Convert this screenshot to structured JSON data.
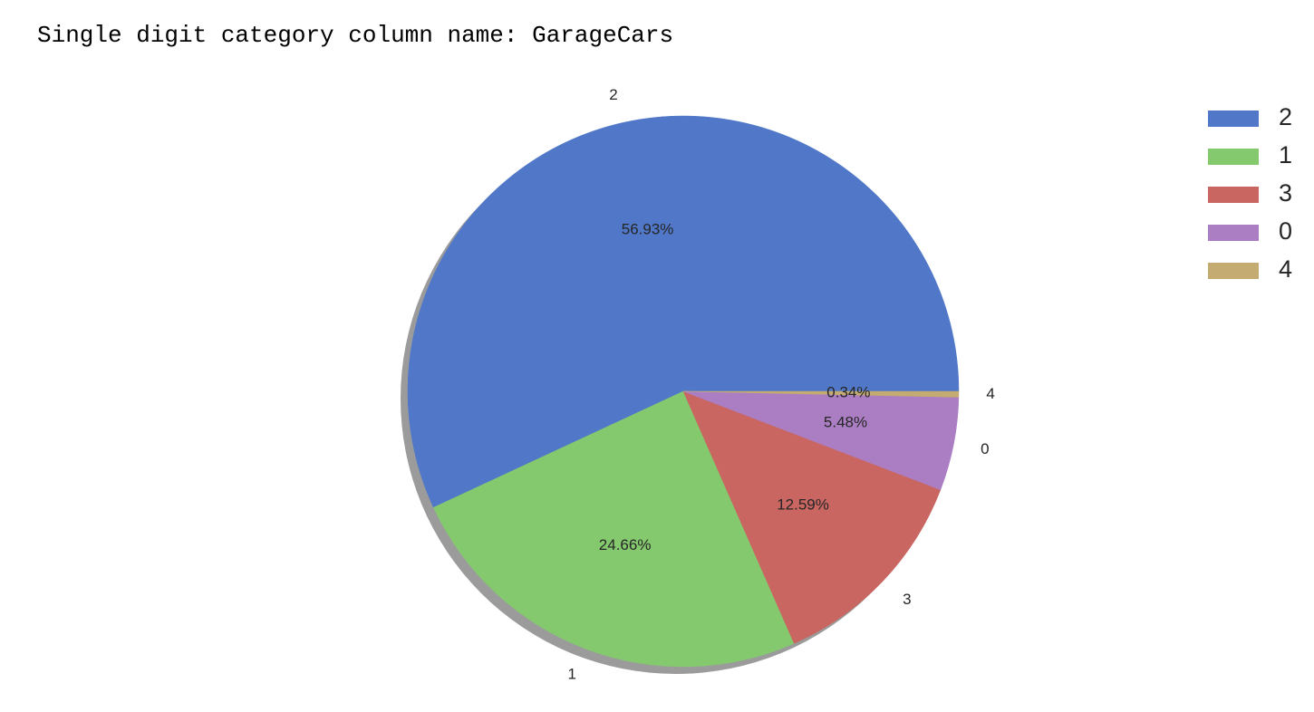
{
  "caption": "Single digit category column name: GarageCars",
  "chart_data": {
    "type": "pie",
    "categories": [
      "2",
      "1",
      "3",
      "0",
      "4"
    ],
    "values": [
      56.93,
      24.66,
      12.59,
      5.48,
      0.34
    ],
    "value_labels": [
      "56.93%",
      "24.66%",
      "12.59%",
      "5.48%",
      "0.34%"
    ],
    "colors": [
      "#5178c8",
      "#85c96f",
      "#c96661",
      "#ab7ec3",
      "#c3ab71"
    ],
    "start_angle_deg": 0,
    "direction": "counterclockwise",
    "shadow": true,
    "legend": {
      "placement": "upper-right",
      "entries": [
        "2",
        "1",
        "3",
        "0",
        "4"
      ]
    }
  }
}
